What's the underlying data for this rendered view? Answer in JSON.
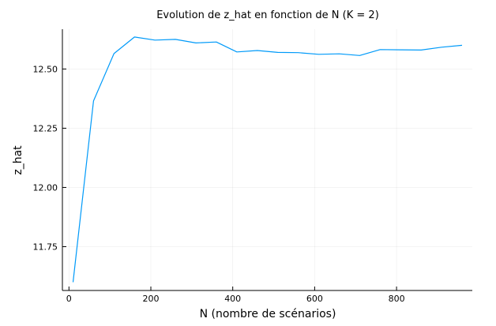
{
  "chart_data": {
    "type": "line",
    "title": "Evolution de z_hat en fonction de N (K = 2)",
    "xlabel": "N (nombre de scénarios)",
    "ylabel": "z_hat",
    "xlim": [
      -16,
      985
    ],
    "ylim": [
      11.565,
      12.668
    ],
    "xticks": [
      0,
      200,
      400,
      600,
      800
    ],
    "xtick_labels": [
      "0",
      "200",
      "400",
      "600",
      "800"
    ],
    "yticks": [
      11.75,
      12.0,
      12.25,
      12.5
    ],
    "ytick_labels": [
      "11.75",
      "12.00",
      "12.25",
      "12.50"
    ],
    "grid": true,
    "legend": "none",
    "series": [
      {
        "color": "#009af9",
        "x": [
          10,
          60,
          110,
          160,
          210,
          260,
          310,
          360,
          410,
          460,
          510,
          560,
          610,
          660,
          710,
          760,
          810,
          860,
          910,
          960
        ],
        "y": [
          11.6,
          12.365,
          12.565,
          12.635,
          12.622,
          12.625,
          12.61,
          12.614,
          12.572,
          12.578,
          12.57,
          12.569,
          12.562,
          12.564,
          12.557,
          12.582,
          12.581,
          12.58,
          12.592,
          12.6
        ]
      }
    ]
  }
}
